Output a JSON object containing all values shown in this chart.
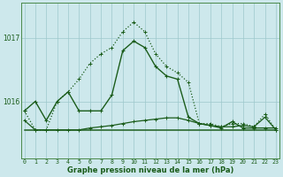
{
  "xlabel_bottom": "Graphe pression niveau de la mer (hPa)",
  "background_color": "#cde8ec",
  "plot_bg_color": "#cde8ec",
  "grid_color": "#9dc8cc",
  "line_color": "#1a5c1a",
  "ytick_labels": [
    "1016",
    "1017"
  ],
  "ytick_vals": [
    1016.0,
    1017.0
  ],
  "xticks": [
    0,
    1,
    2,
    3,
    4,
    5,
    6,
    7,
    8,
    9,
    10,
    11,
    12,
    13,
    14,
    15,
    16,
    17,
    18,
    19,
    20,
    21,
    22,
    23
  ],
  "ylim": [
    1015.1,
    1017.55
  ],
  "xlim": [
    -0.3,
    23.3
  ],
  "series_solid": [
    1015.55,
    1015.55,
    1015.55,
    1015.55,
    1015.55,
    1015.55,
    1015.55,
    1015.55,
    1015.55,
    1015.55,
    1015.55,
    1015.55,
    1015.55,
    1015.55,
    1015.55,
    1015.55,
    1015.55,
    1015.55,
    1015.55,
    1015.55,
    1015.55,
    1015.55,
    1015.55,
    1015.55
  ],
  "series_markers": [
    1015.7,
    1015.55,
    1015.55,
    1015.55,
    1015.55,
    1015.55,
    1015.58,
    1015.6,
    1015.62,
    1015.65,
    1015.68,
    1015.7,
    1015.72,
    1015.74,
    1015.74,
    1015.7,
    1015.65,
    1015.62,
    1015.6,
    1015.6,
    1015.62,
    1015.6,
    1015.75,
    1015.55
  ],
  "series_dotted": [
    1015.85,
    1015.55,
    1015.55,
    1016.0,
    1016.15,
    1016.35,
    1016.6,
    1016.75,
    1016.85,
    1017.1,
    1017.25,
    1017.1,
    1016.75,
    1016.55,
    1016.45,
    1016.3,
    1015.65,
    1015.65,
    1015.6,
    1015.65,
    1015.65,
    1015.6,
    1015.8,
    1015.55
  ],
  "series_main": [
    1015.85,
    1016.0,
    1015.7,
    1016.0,
    1016.15,
    1015.85,
    1015.85,
    1015.85,
    1016.1,
    1016.8,
    1016.95,
    1016.85,
    1016.55,
    1016.4,
    1016.35,
    1015.75,
    1015.65,
    1015.62,
    1015.58,
    1015.68,
    1015.58,
    1015.58,
    1015.58,
    1015.58
  ],
  "lw": 0.9,
  "ms": 2.5
}
